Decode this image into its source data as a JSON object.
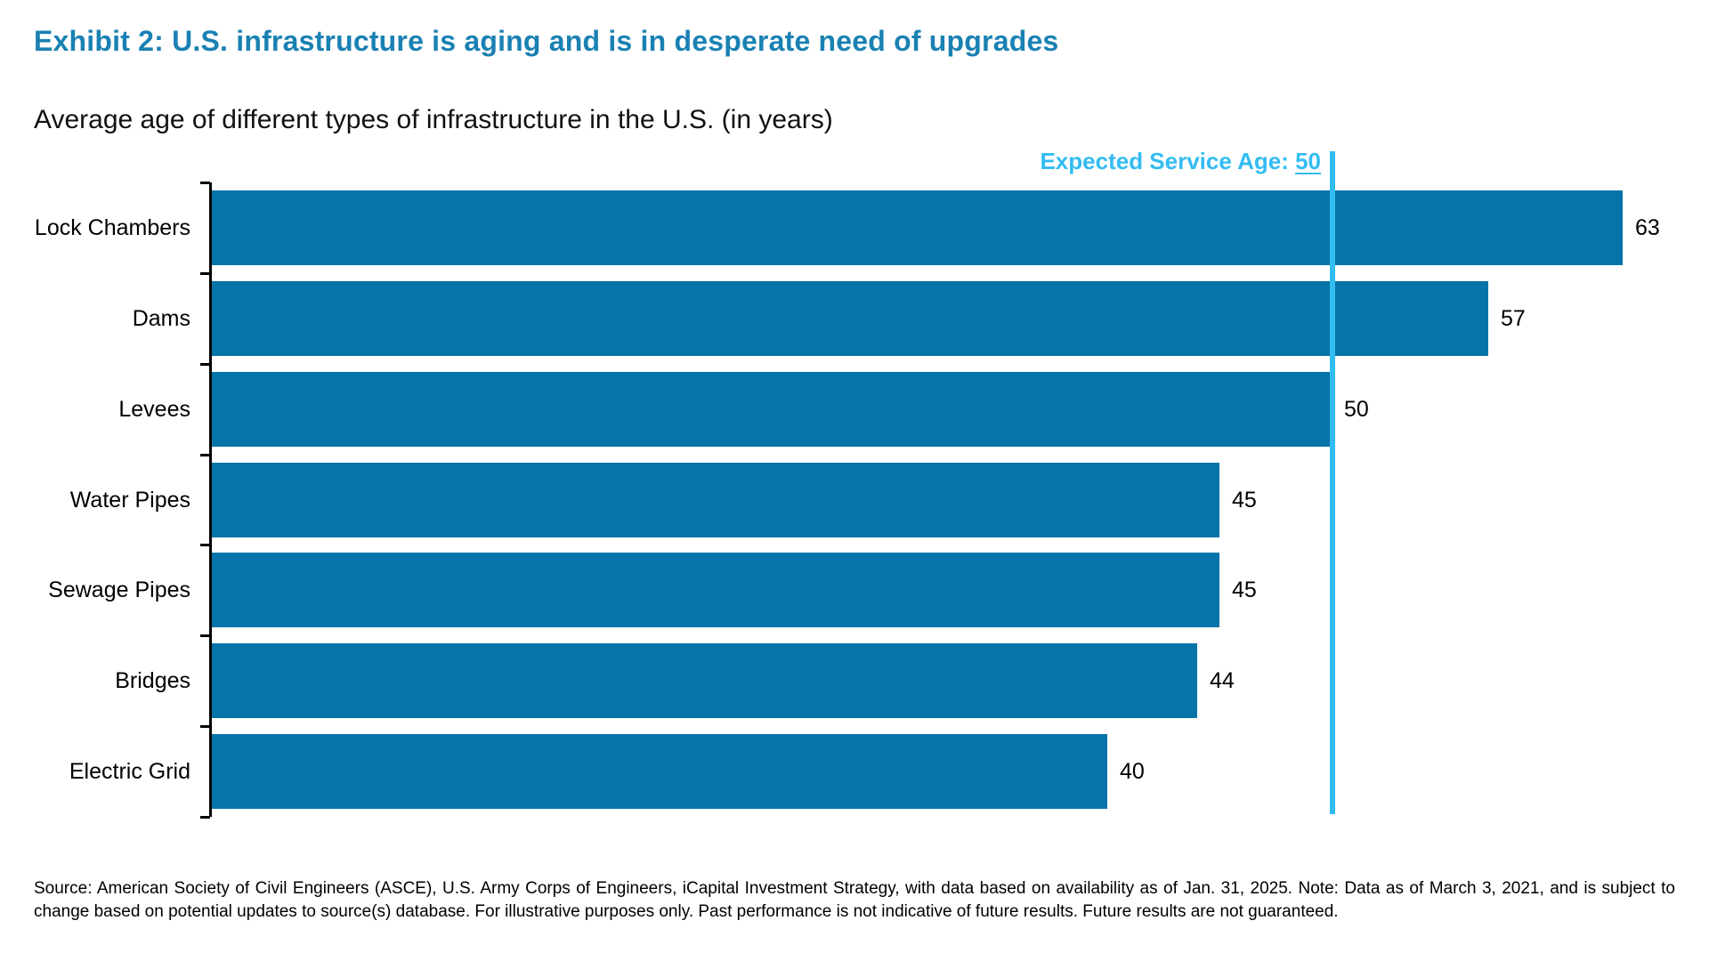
{
  "chart_data": {
    "type": "bar",
    "orientation": "horizontal",
    "title": "Exhibit 2: U.S. infrastructure is aging and is in desperate need of upgrades",
    "subtitle": "Average age of different types of infrastructure in the U.S. (in years)",
    "categories": [
      "Lock Chambers",
      "Dams",
      "Levees",
      "Water Pipes",
      "Sewage Pipes",
      "Bridges",
      "Electric Grid"
    ],
    "values": [
      63,
      57,
      50,
      45,
      45,
      44,
      40
    ],
    "xlim": [
      0,
      63
    ],
    "grid": false,
    "legend": "none",
    "value_labels_shown": true,
    "reference_line": {
      "label_prefix": "Expected Service Age: ",
      "display_value": "50",
      "value": 50
    }
  },
  "colors": {
    "bar": "#0674A8",
    "reference": "#33BCF2",
    "title": "#1A81B3",
    "axis": "#000000",
    "text": "#000000"
  },
  "footer": {
    "source": "Source: American Society of Civil Engineers (ASCE), U.S. Army Corps of Engineers, iCapital Investment Strategy, with data based on availability as of Jan. 31, 2025. Note: Data as of March 3, 2021, and is subject to change based on potential updates to source(s) database. For illustrative purposes only. Past performance is not indicative of future results. Future results are not guaranteed."
  }
}
